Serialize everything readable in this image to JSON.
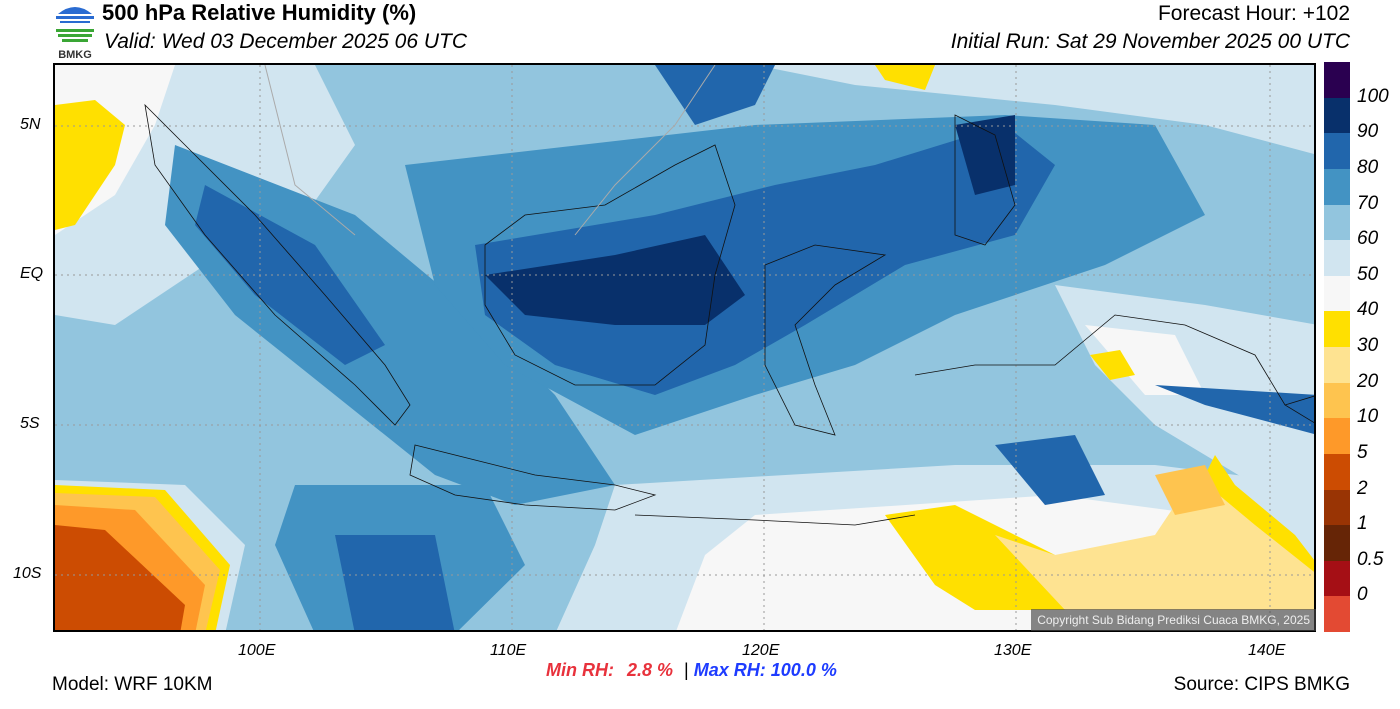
{
  "header": {
    "logo_text": "BMKG",
    "title": "500 hPa Relative Humidity (%)",
    "valid": "Valid: Wed 03 December 2025 06 UTC",
    "forecast_hour": "Forecast Hour: +102",
    "initial_run": "Initial Run: Sat 29 November 2025 00 UTC"
  },
  "map": {
    "lat_labels": [
      "5N",
      "EQ",
      "5S",
      "10S"
    ],
    "lon_labels": [
      "100E",
      "110E",
      "120E",
      "130E",
      "140E"
    ],
    "copyright": "Copyright Sub Bidang Prediksi Cuaca BMKG, 2025"
  },
  "colorbar": {
    "labels": [
      "100",
      "90",
      "80",
      "70",
      "60",
      "50",
      "40",
      "30",
      "20",
      "10",
      "5",
      "2",
      "1",
      "0.5",
      "0"
    ],
    "colors": [
      "#2a0050",
      "#08306b",
      "#2166ac",
      "#4393c3",
      "#92c5de",
      "#d1e5f0",
      "#f7f7f7",
      "#ffe000",
      "#fee391",
      "#fec44f",
      "#fe9929",
      "#cc4c02",
      "#993404",
      "#662506",
      "#a50f15",
      "#e34a33"
    ]
  },
  "footer": {
    "model": "Model: WRF 10KM",
    "min_label": "Min RH:",
    "min_value": "2.8 %",
    "separator": "|",
    "max_label": "Max RH:",
    "max_value": "100.0 %",
    "source": "Source: CIPS BMKG"
  }
}
